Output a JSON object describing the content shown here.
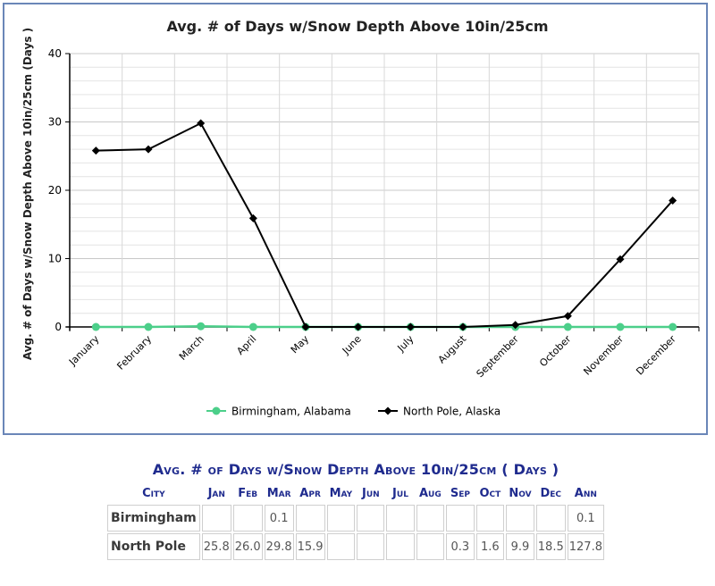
{
  "chart_data": {
    "type": "line",
    "title": "Avg. # of Days w/Snow Depth Above 10in/25cm",
    "xlabel": "",
    "ylabel": "Avg. # of Days w/Snow Depth Above 10in/25cm (Days )",
    "categories": [
      "January",
      "February",
      "March",
      "April",
      "May",
      "June",
      "July",
      "August",
      "September",
      "October",
      "November",
      "December"
    ],
    "ylim": [
      0,
      40
    ],
    "yticks": [
      "0",
      "10",
      "20",
      "30",
      "40"
    ],
    "grid": true,
    "legend_position": "bottom",
    "series": [
      {
        "name": "Birmingham, Alabama",
        "color": "#4ccf8a",
        "marker": "circle",
        "values": [
          0,
          0,
          0.1,
          0,
          0,
          0,
          0,
          0,
          0,
          0,
          0,
          0
        ]
      },
      {
        "name": "North Pole, Alaska",
        "color": "#000000",
        "marker": "diamond",
        "values": [
          25.8,
          26.0,
          29.8,
          15.9,
          0,
          0,
          0,
          0,
          0.3,
          1.6,
          9.9,
          18.5
        ]
      }
    ]
  },
  "table": {
    "title": "Avg. # of Days w/Snow Depth Above 10in/25cm ( Days )",
    "headers": [
      "City",
      "Jan",
      "Feb",
      "Mar",
      "Apr",
      "May",
      "Jun",
      "Jul",
      "Aug",
      "Sep",
      "Oct",
      "Nov",
      "Dec",
      "Ann"
    ],
    "rows": [
      {
        "city": "Birmingham",
        "values": [
          "",
          "",
          "0.1",
          "",
          "",
          "",
          "",
          "",
          "",
          "",
          "",
          "",
          "0.1"
        ]
      },
      {
        "city": "North Pole",
        "values": [
          "25.8",
          "26.0",
          "29.8",
          "15.9",
          "",
          "",
          "",
          "",
          "0.3",
          "1.6",
          "9.9",
          "18.5",
          "127.8"
        ]
      }
    ]
  }
}
